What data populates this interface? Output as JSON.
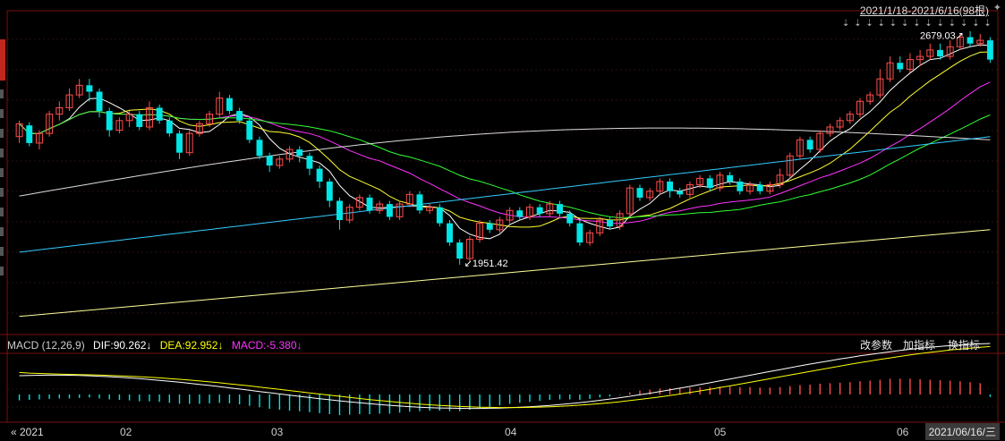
{
  "header": {
    "range_label": "2021/1/18-2021/6/16(98根)",
    "pin_icon": "pin-icon"
  },
  "macd_panel": {
    "title": "MACD (12,26,9)",
    "dif": "DIF:90.262↓",
    "dea": "DEA:92.952↓",
    "macd": "MACD:-5.380↓",
    "buttons": [
      "改参数",
      "加指标",
      "换指标"
    ]
  },
  "axis": {
    "start": "« 2021",
    "months": [
      "02",
      "03",
      "04",
      "05",
      "06"
    ],
    "current_date": "2021/06/16/三"
  },
  "colors": {
    "up": "#ff4d4d",
    "down": "#00e5e5",
    "ma5": "#ffffff",
    "ma10": "#ffff33",
    "ma20": "#ff33ff",
    "ma30": "#33ff33",
    "ma60": "#dddddd",
    "ma120": "#33ccff",
    "ma250": "#ffff99",
    "dif": "#ffffff",
    "dea": "#ffff00",
    "macd_label": "#ff33ff"
  },
  "chart_data": {
    "type": "candlestick",
    "high_annotation": "2679.03",
    "low_annotation": "1951.42",
    "candles_approx": [
      [
        2350,
        2390,
        2330,
        2400
      ],
      [
        2385,
        2330,
        2320,
        2395
      ],
      [
        2330,
        2360,
        2310,
        2370
      ],
      [
        2360,
        2420,
        2350,
        2430
      ],
      [
        2420,
        2440,
        2400,
        2460
      ],
      [
        2440,
        2480,
        2430,
        2500
      ],
      [
        2480,
        2510,
        2470,
        2530
      ],
      [
        2510,
        2490,
        2460,
        2530
      ],
      [
        2490,
        2430,
        2410,
        2500
      ],
      [
        2430,
        2370,
        2350,
        2440
      ],
      [
        2370,
        2400,
        2360,
        2410
      ],
      [
        2400,
        2420,
        2380,
        2430
      ],
      [
        2420,
        2380,
        2370,
        2430
      ],
      [
        2380,
        2440,
        2370,
        2460
      ],
      [
        2440,
        2400,
        2390,
        2450
      ],
      [
        2400,
        2360,
        2350,
        2410
      ],
      [
        2360,
        2300,
        2280,
        2370
      ],
      [
        2300,
        2360,
        2290,
        2370
      ],
      [
        2360,
        2390,
        2350,
        2400
      ],
      [
        2390,
        2420,
        2380,
        2430
      ],
      [
        2420,
        2470,
        2410,
        2490
      ],
      [
        2470,
        2430,
        2420,
        2480
      ],
      [
        2430,
        2400,
        2390,
        2440
      ],
      [
        2400,
        2340,
        2330,
        2410
      ],
      [
        2340,
        2290,
        2280,
        2350
      ],
      [
        2290,
        2260,
        2240,
        2300
      ],
      [
        2260,
        2280,
        2250,
        2290
      ],
      [
        2280,
        2310,
        2270,
        2320
      ],
      [
        2310,
        2290,
        2270,
        2320
      ],
      [
        2290,
        2250,
        2230,
        2300
      ],
      [
        2250,
        2210,
        2190,
        2260
      ],
      [
        2210,
        2150,
        2130,
        2220
      ],
      [
        2150,
        2090,
        2060,
        2160
      ],
      [
        2090,
        2130,
        2080,
        2140
      ],
      [
        2130,
        2160,
        2120,
        2170
      ],
      [
        2160,
        2120,
        2110,
        2170
      ],
      [
        2120,
        2140,
        2110,
        2150
      ],
      [
        2140,
        2100,
        2090,
        2150
      ],
      [
        2100,
        2140,
        2090,
        2150
      ],
      [
        2140,
        2170,
        2130,
        2180
      ],
      [
        2170,
        2120,
        2110,
        2180
      ],
      [
        2120,
        2130,
        2110,
        2140
      ],
      [
        2130,
        2080,
        2070,
        2140
      ],
      [
        2080,
        2020,
        2010,
        2090
      ],
      [
        2020,
        1970,
        1951,
        2030
      ],
      [
        1970,
        2030,
        1960,
        2040
      ],
      [
        2030,
        2080,
        2020,
        2090
      ],
      [
        2080,
        2060,
        2050,
        2090
      ],
      [
        2060,
        2090,
        2050,
        2100
      ],
      [
        2090,
        2120,
        2080,
        2130
      ],
      [
        2120,
        2100,
        2090,
        2130
      ],
      [
        2100,
        2130,
        2090,
        2140
      ],
      [
        2130,
        2110,
        2100,
        2140
      ],
      [
        2110,
        2140,
        2100,
        2150
      ],
      [
        2140,
        2110,
        2100,
        2150
      ],
      [
        2110,
        2080,
        2070,
        2120
      ],
      [
        2080,
        2020,
        2010,
        2090
      ],
      [
        2020,
        2050,
        2010,
        2060
      ],
      [
        2050,
        2090,
        2040,
        2100
      ],
      [
        2090,
        2070,
        2060,
        2100
      ],
      [
        2070,
        2110,
        2060,
        2120
      ],
      [
        2110,
        2190,
        2100,
        2200
      ],
      [
        2190,
        2160,
        2150,
        2200
      ],
      [
        2160,
        2180,
        2150,
        2190
      ],
      [
        2180,
        2210,
        2170,
        2220
      ],
      [
        2210,
        2180,
        2160,
        2220
      ],
      [
        2180,
        2170,
        2160,
        2190
      ],
      [
        2170,
        2200,
        2160,
        2210
      ],
      [
        2200,
        2220,
        2190,
        2230
      ],
      [
        2220,
        2190,
        2180,
        2230
      ],
      [
        2190,
        2230,
        2180,
        2240
      ],
      [
        2230,
        2210,
        2200,
        2240
      ],
      [
        2210,
        2180,
        2170,
        2220
      ],
      [
        2180,
        2200,
        2170,
        2210
      ],
      [
        2200,
        2180,
        2170,
        2210
      ],
      [
        2180,
        2200,
        2170,
        2210
      ],
      [
        2200,
        2230,
        2190,
        2250
      ],
      [
        2230,
        2290,
        2220,
        2300
      ],
      [
        2290,
        2340,
        2280,
        2350
      ],
      [
        2340,
        2310,
        2300,
        2350
      ],
      [
        2310,
        2360,
        2300,
        2370
      ],
      [
        2360,
        2380,
        2350,
        2390
      ],
      [
        2380,
        2400,
        2370,
        2410
      ],
      [
        2400,
        2420,
        2390,
        2430
      ],
      [
        2420,
        2460,
        2410,
        2470
      ],
      [
        2460,
        2480,
        2450,
        2490
      ],
      [
        2480,
        2530,
        2470,
        2560
      ],
      [
        2530,
        2580,
        2520,
        2600
      ],
      [
        2580,
        2560,
        2550,
        2600
      ],
      [
        2560,
        2590,
        2550,
        2610
      ],
      [
        2590,
        2600,
        2570,
        2620
      ],
      [
        2600,
        2620,
        2590,
        2640
      ],
      [
        2620,
        2600,
        2590,
        2640
      ],
      [
        2600,
        2630,
        2590,
        2650
      ],
      [
        2630,
        2660,
        2620,
        2670
      ],
      [
        2660,
        2640,
        2630,
        2679
      ],
      [
        2640,
        2650,
        2630,
        2670
      ],
      [
        2650,
        2590,
        2580,
        2660
      ]
    ],
    "macd_hist_approx": [
      -12,
      -11,
      -10,
      -9,
      -8,
      -8,
      -7,
      -6,
      -8,
      -10,
      -11,
      -12,
      -14,
      -14,
      -15,
      -17,
      -19,
      -19,
      -19,
      -18,
      -17,
      -18,
      -20,
      -23,
      -26,
      -29,
      -31,
      -33,
      -34,
      -36,
      -38,
      -40,
      -42,
      -41,
      -40,
      -40,
      -39,
      -39,
      -37,
      -35,
      -34,
      -33,
      -33,
      -34,
      -34,
      -31,
      -27,
      -25,
      -22,
      -19,
      -17,
      -15,
      -13,
      -11,
      -10,
      -10,
      -11,
      -9,
      -6,
      -4,
      -1,
      4,
      8,
      10,
      12,
      13,
      13,
      14,
      15,
      15,
      16,
      16,
      15,
      15,
      14,
      14,
      15,
      17,
      19,
      20,
      22,
      23,
      24,
      25,
      27,
      28,
      30,
      32,
      32,
      32,
      31,
      30,
      29,
      28,
      27,
      25,
      23,
      -5
    ]
  }
}
